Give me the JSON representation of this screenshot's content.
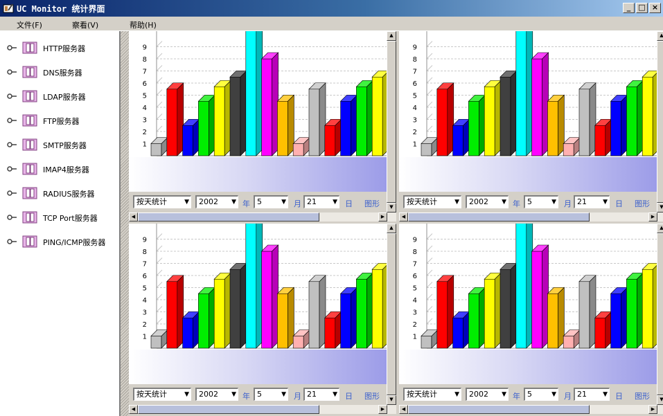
{
  "window": {
    "title": "UC Monitor 统计界面",
    "minimize_label": "_",
    "maximize_label": "□",
    "close_label": "×"
  },
  "menu": [
    {
      "label": "文件(F)"
    },
    {
      "label": "察看(V)"
    },
    {
      "label": "帮助(H)"
    }
  ],
  "tree": {
    "items": [
      {
        "label": "HTTP服务器"
      },
      {
        "label": "DNS服务器"
      },
      {
        "label": "LDAP服务器"
      },
      {
        "label": "FTP服务器"
      },
      {
        "label": "SMTP服务器"
      },
      {
        "label": "IMAP4服务器"
      },
      {
        "label": "RADIUS服务器"
      },
      {
        "label": "TCP Port服务器"
      },
      {
        "label": "PING/ICMP服务器"
      }
    ]
  },
  "controls": {
    "period": "按天统计",
    "year": "2002",
    "year_unit": "年",
    "month": "5",
    "month_unit": "月",
    "day": "21",
    "day_unit": "日",
    "chart_label": "图形"
  },
  "chart_data": {
    "type": "bar",
    "y_ticks": [
      "1",
      "2",
      "3",
      "4",
      "5",
      "6",
      "7",
      "8",
      "9"
    ],
    "values": [
      1,
      5.5,
      2.5,
      4.5,
      5.7,
      6.5,
      11,
      8,
      4.5,
      1,
      5.5,
      2.5,
      4.5,
      5.7,
      6.5
    ],
    "colors": [
      "#c0c0c0",
      "#ff0000",
      "#0000ff",
      "#00ee00",
      "#ffff00",
      "#404040",
      "#00ffff",
      "#ff00ff",
      "#ffc000",
      "#ffb0b0",
      "#c0c0c0",
      "#ff0000",
      "#0000ff",
      "#00ee00",
      "#ffff00"
    ],
    "grid": true,
    "background": "#ffffff",
    "floor_color": "#9c9ce8"
  }
}
